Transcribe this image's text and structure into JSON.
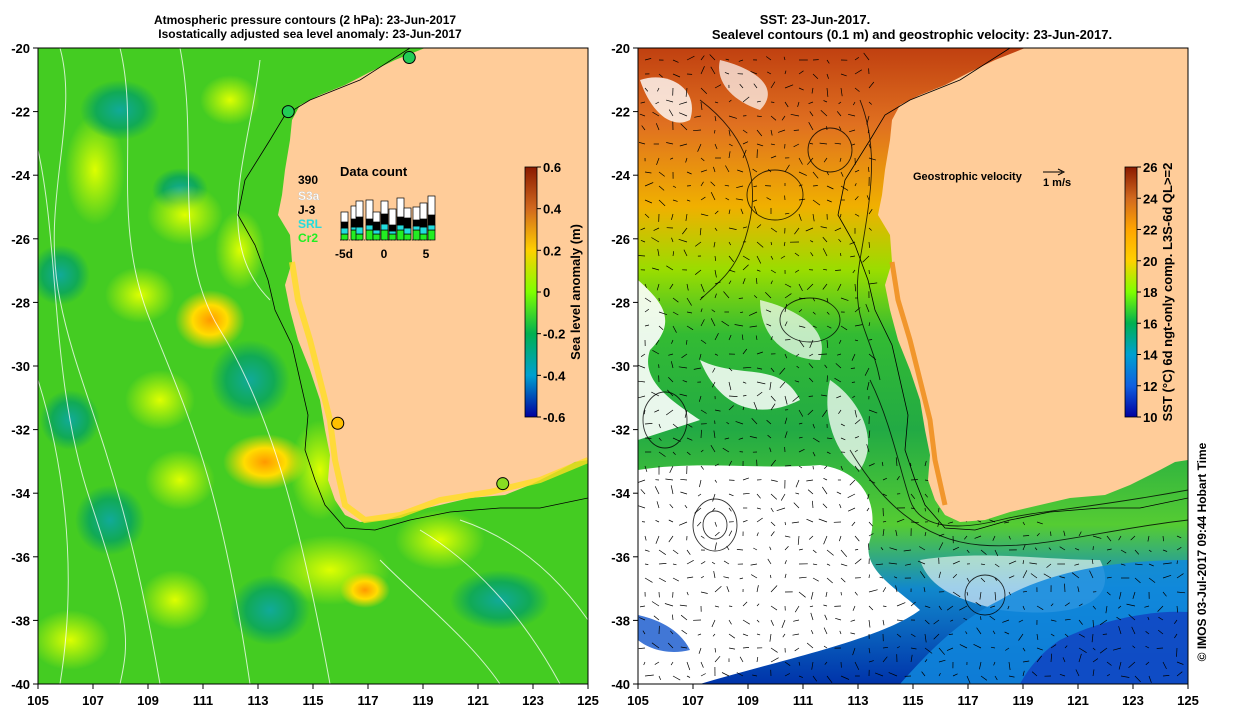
{
  "left_map": {
    "title_line1": "Atmospheric pressure contours (2 hPa): 23-Jun-2017",
    "title_line2": "Isostatically adjusted sea level anomaly: 23-Jun-2017",
    "lat_range": [
      -40,
      -20
    ],
    "lon_range": [
      105,
      125
    ],
    "colorbar": {
      "label": "Sea level anomaly (m)",
      "ticks": [
        "0.6",
        "0.4",
        "0.2",
        "0",
        "-0.2",
        "-0.4",
        "-0.6"
      ],
      "colors": [
        "#8b1a00",
        "#d2691e",
        "#ffd000",
        "#7fff00",
        "#00b050",
        "#00a0d0",
        "#0000a0"
      ]
    },
    "data_count": {
      "title": "Data count",
      "number": "390",
      "satellites": [
        {
          "name": "S3a",
          "color": "#ffffff"
        },
        {
          "name": "J-3",
          "color": "#000000"
        },
        {
          "name": "SRL",
          "color": "#22dddd"
        },
        {
          "name": "Cr2",
          "color": "#22ee22"
        }
      ],
      "axis_ticks": [
        "-5d",
        "0",
        "5"
      ]
    },
    "stations": [
      {
        "lon": 118.5,
        "lat": -20.3,
        "color": "#22cc55"
      },
      {
        "lon": 114.1,
        "lat": -22.0,
        "color": "#22cc55"
      },
      {
        "lon": 115.9,
        "lat": -31.8,
        "color": "#ffc000"
      },
      {
        "lon": 121.9,
        "lat": -33.7,
        "color": "#88dd22"
      }
    ]
  },
  "right_map": {
    "title_line1": "SST: 23-Jun-2017.",
    "title_line2": "Sealevel contours (0.1 m) and geostrophic velocity: 23-Jun-2017.",
    "lat_range": [
      -40,
      -20
    ],
    "lon_range": [
      105,
      125
    ],
    "velocity_label": "Geostrophic velocity",
    "velocity_scale": "1 m/s",
    "colorbar": {
      "label": "SST (°C) 6d ngt-only comp. L3S-6d QL>=2",
      "ticks": [
        "26",
        "24",
        "22",
        "20",
        "18",
        "16",
        "14",
        "12",
        "10"
      ],
      "colors": [
        "#8b1a00",
        "#d2691e",
        "#ffa500",
        "#ffd000",
        "#7fff00",
        "#00b050",
        "#00a0d0",
        "#1060e0",
        "#0000a0"
      ]
    }
  },
  "y_ticks": [
    "-20",
    "-22",
    "-24",
    "-26",
    "-28",
    "-30",
    "-32",
    "-34",
    "-36",
    "-38",
    "-40"
  ],
  "x_ticks": [
    "105",
    "107",
    "109",
    "111",
    "113",
    "115",
    "117",
    "119",
    "121",
    "123",
    "125"
  ],
  "credit": "© IMOS 03-Jul-2017 09:44 Hobart Time",
  "colors": {
    "land": "#ffcc99",
    "ocean_left": "#44cc22",
    "ocean_right": "#33bb33"
  }
}
